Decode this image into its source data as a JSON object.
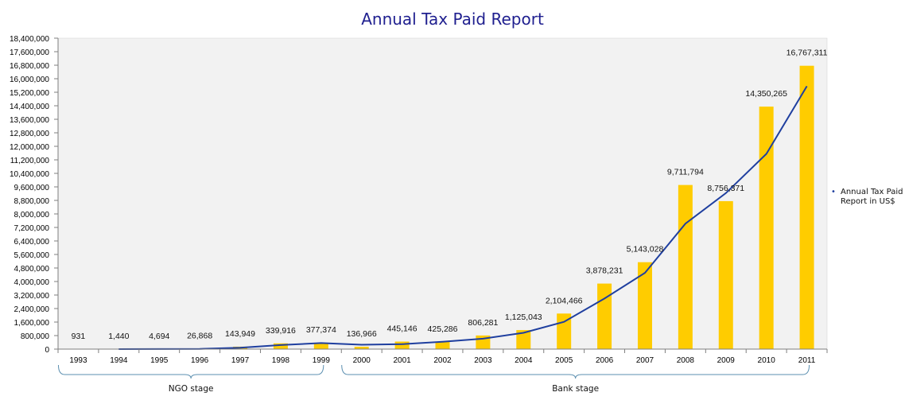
{
  "chart_data": {
    "type": "bar",
    "title": "Annual Tax Paid Report",
    "categories": [
      "1993",
      "1994",
      "1995",
      "1996",
      "1997",
      "1998",
      "1999",
      "2000",
      "2001",
      "2002",
      "2003",
      "2004",
      "2005",
      "2006",
      "2007",
      "2008",
      "2009",
      "2010",
      "2011"
    ],
    "series": [
      {
        "name": "Annual Tax Paid Report in US$",
        "values": [
          931,
          1440,
          4694,
          26868,
          143949,
          339916,
          377374,
          136966,
          445146,
          425286,
          806281,
          1125043,
          2104466,
          3878231,
          5143028,
          9711794,
          8756371,
          14350265,
          16767311
        ],
        "labels": [
          "931",
          "1,440",
          "4,694",
          "26,868",
          "143,949",
          "339,916",
          "377,374",
          "136,966",
          "445,146",
          "425,286",
          "806,281",
          "1,125,043",
          "2,104,466",
          "3,878,231",
          "5,143,028",
          "9,711,794",
          "8,756,371",
          "14,350,265",
          "16,767,311"
        ]
      }
    ],
    "trend_line": {
      "type": "moving-average",
      "color": "#1f3f9f"
    },
    "ylim": [
      0,
      18400000
    ],
    "y_ticks": [
      0,
      800000,
      1600000,
      2400000,
      3200000,
      4000000,
      4800000,
      5600000,
      6400000,
      7200000,
      8000000,
      8800000,
      9600000,
      10400000,
      11200000,
      12000000,
      12800000,
      13600000,
      14400000,
      15200000,
      16000000,
      16800000,
      17600000,
      18400000
    ],
    "y_tick_labels": [
      "0",
      "800,000",
      "1,600,000",
      "2,400,000",
      "3,200,000",
      "4,000,000",
      "4,800,000",
      "5,600,000",
      "6,400,000",
      "7,200,000",
      "8,000,000",
      "8,800,000",
      "9,600,000",
      "10,400,000",
      "11,200,000",
      "12,000,000",
      "12,800,000",
      "13,600,000",
      "14,400,000",
      "15,200,000",
      "16,000,000",
      "16,800,000",
      "17,600,000",
      "18,400,000"
    ],
    "legend": {
      "position": "right",
      "lines": [
        "Annual Tax Paid",
        "Report in US$"
      ]
    },
    "groups": [
      {
        "label": "NGO stage",
        "from": "1993",
        "to": "1999"
      },
      {
        "label": "Bank stage",
        "from": "2000",
        "to": "2011"
      }
    ],
    "colors": {
      "bar": "#ffcc00",
      "line": "#1f3f9f",
      "plot_bg": "#f2f2f2",
      "title": "#1f1f8f",
      "bracket": "#5b8fb0"
    }
  }
}
